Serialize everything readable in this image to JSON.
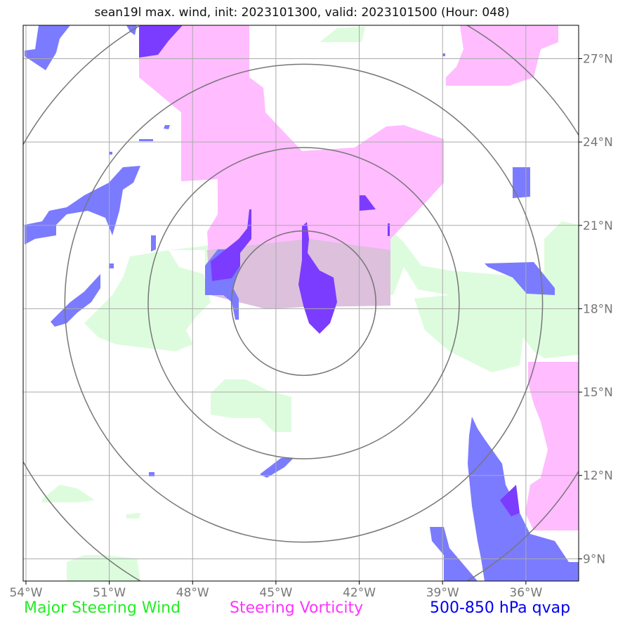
{
  "title": "sean19l max. wind, init: 2023101300, valid: 2023101500 (Hour: 048)",
  "axes": {
    "lon_ticks": [
      "54°W",
      "51°W",
      "48°W",
      "45°W",
      "42°W",
      "39°W",
      "36°W"
    ],
    "lat_ticks": [
      "27°N",
      "24°N",
      "21°N",
      "18°N",
      "15°N",
      "12°N",
      "9°N"
    ],
    "lon_values": [
      -54,
      -51,
      -48,
      -45,
      -42,
      -39,
      -36
    ],
    "lat_values": [
      27,
      24,
      21,
      18,
      15,
      12,
      9
    ],
    "lon_range": [
      -54.1,
      -34.1
    ],
    "lat_range": [
      8.2,
      28.2
    ],
    "grid": true
  },
  "range_rings": {
    "center_lon": -44.0,
    "center_lat": 18.2,
    "radii_deg": [
      2.6,
      5.6,
      8.6,
      11.6
    ]
  },
  "legend": [
    {
      "label": "Major Steering Wind",
      "color": "#22ee22"
    },
    {
      "label": "Steering Vorticity",
      "color": "#ff33ff"
    },
    {
      "label": "500-850 hPa qvap",
      "color": "#0000ee"
    }
  ],
  "colors": {
    "steering_wind_fill": "#ddfcdd",
    "vorticity_fill": "#ffbcff",
    "overlap_fill": "#dcc0dc",
    "qvap_fill": "#7b7bff",
    "qvap_on_vorticity": "#7b3cff",
    "qvap_dark": "#6a40ee",
    "grid": "#aaaaaa",
    "rings": "#777777",
    "tick_text": "#777777"
  }
}
